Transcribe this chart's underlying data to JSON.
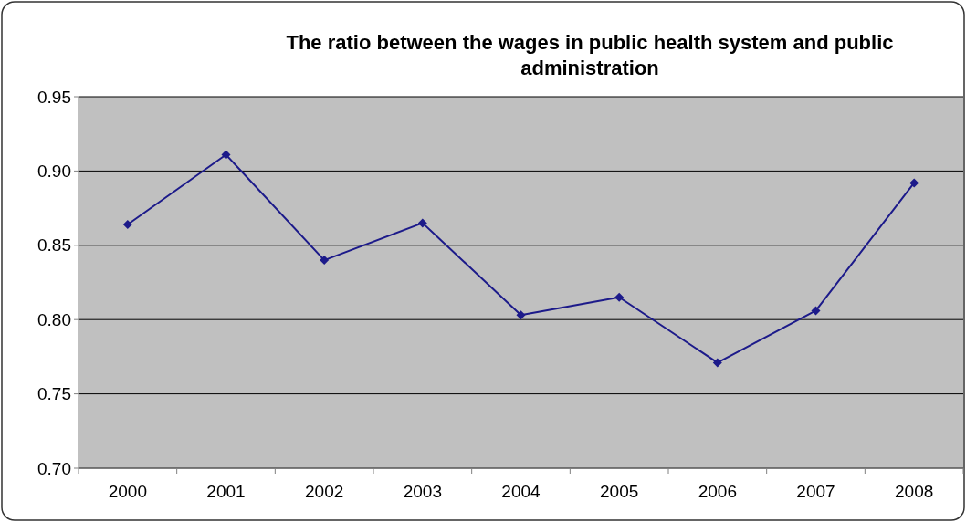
{
  "chart_data": {
    "type": "line",
    "title": "The ratio between the wages in public health system and public administration",
    "categories": [
      "2000",
      "2001",
      "2002",
      "2003",
      "2004",
      "2005",
      "2006",
      "2007",
      "2008"
    ],
    "series": [
      {
        "color": "#1c1a8a",
        "values": [
          0.864,
          0.911,
          0.84,
          0.865,
          0.803,
          0.815,
          0.771,
          0.806,
          0.892
        ]
      }
    ],
    "ylim": [
      0.7,
      0.95
    ],
    "yticks": [
      {
        "value": 0.7,
        "label": "0.70"
      },
      {
        "value": 0.75,
        "label": "0.75"
      },
      {
        "value": 0.8,
        "label": "0.80"
      },
      {
        "value": 0.85,
        "label": "0.85"
      },
      {
        "value": 0.9,
        "label": "0.90"
      },
      {
        "value": 0.95,
        "label": "0.95"
      }
    ],
    "grid": "y",
    "marker": "diamond"
  }
}
